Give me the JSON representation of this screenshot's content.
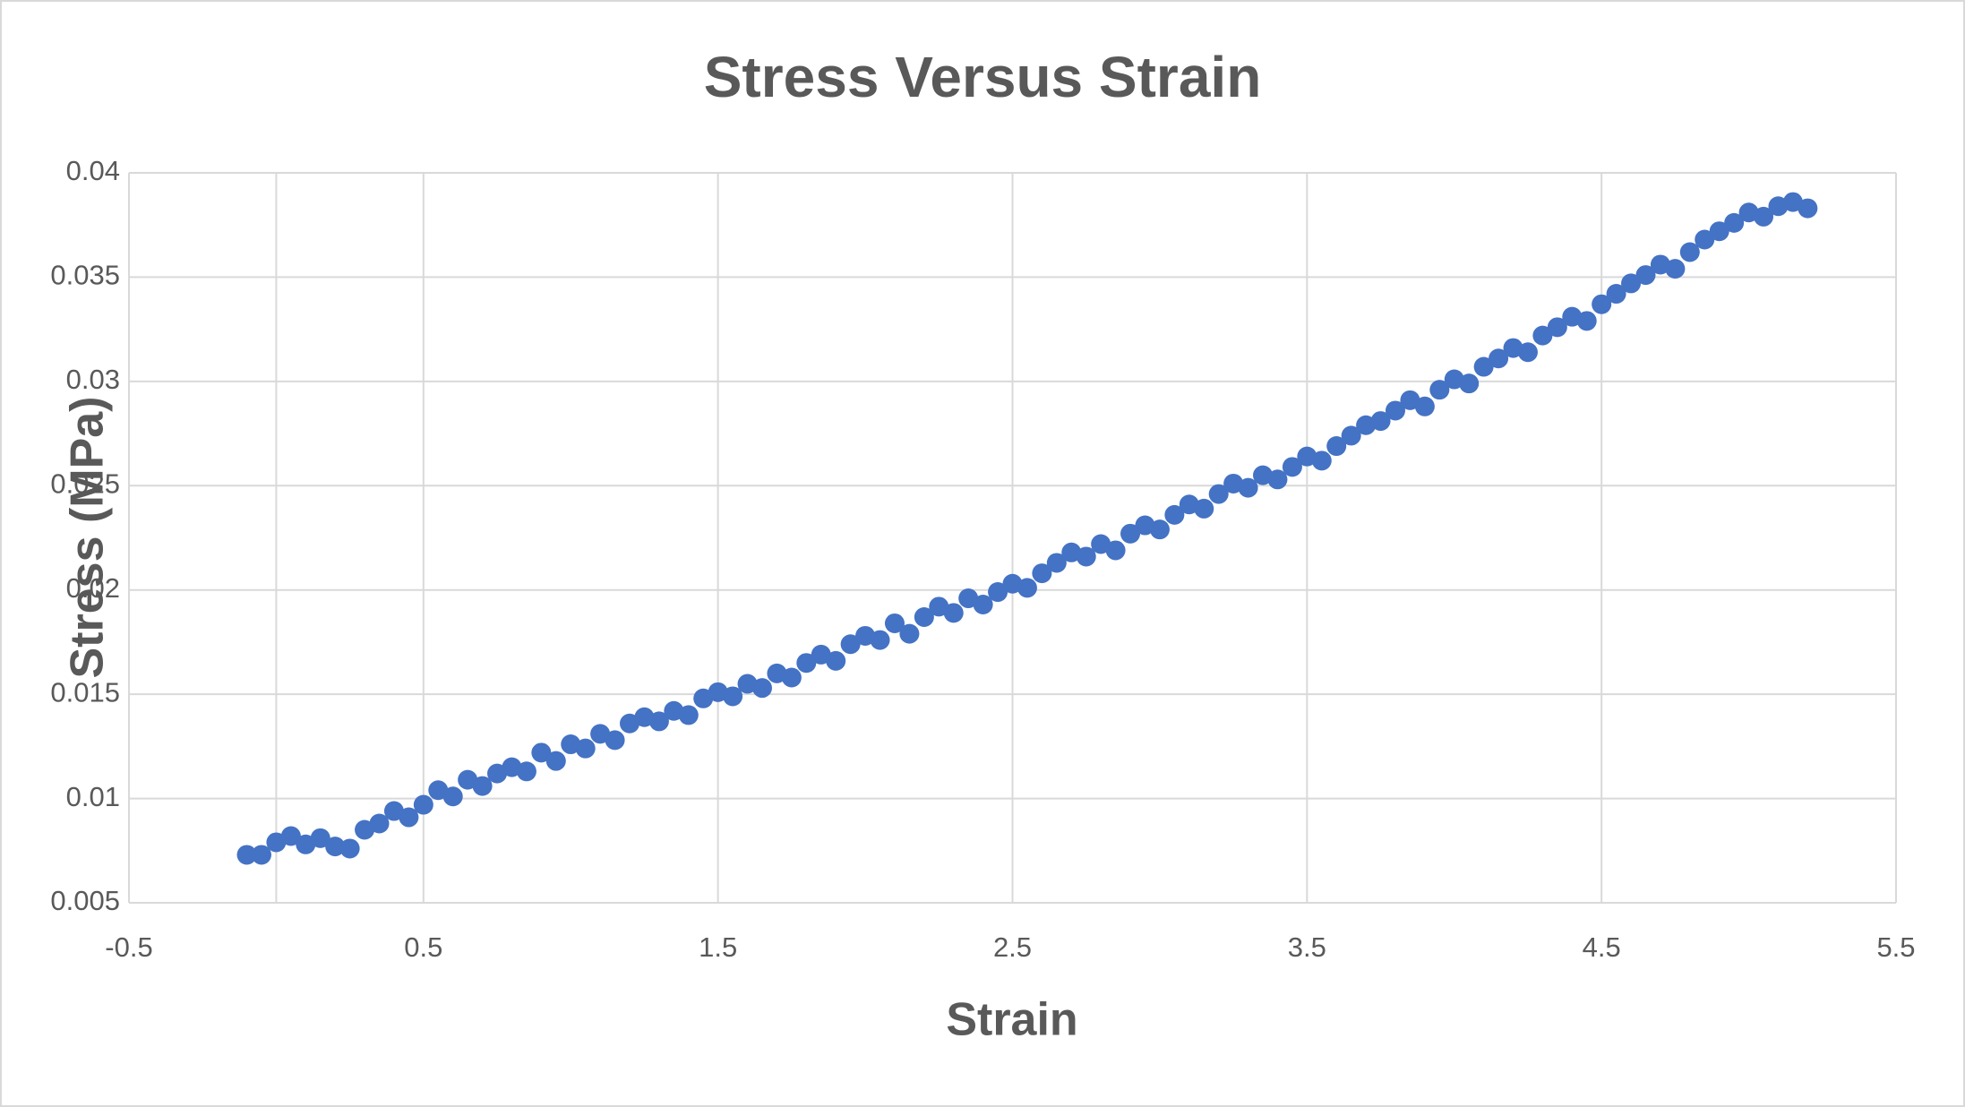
{
  "chart_data": {
    "type": "scatter",
    "title": "Stress Versus Strain",
    "x_label": "Strain",
    "y_label": "Stress (MPa)",
    "color": "#4472c4",
    "grid": true,
    "xlim": [
      -0.5,
      5.5
    ],
    "xticks": [
      -0.5,
      0.5,
      1.5,
      2.5,
      3.5,
      4.5,
      5.5
    ],
    "ylim": [
      0.005,
      0.04
    ],
    "yticks": [
      0.005,
      0.01,
      0.015,
      0.02,
      0.025,
      0.03,
      0.035,
      0.04
    ],
    "x": [
      -0.1,
      -0.05,
      0,
      0.05,
      0.1,
      0.15,
      0.2,
      0.25,
      0.3,
      0.35,
      0.4,
      0.45,
      0.5,
      0.55,
      0.6,
      0.65,
      0.7,
      0.75,
      0.8,
      0.85,
      0.9,
      0.95,
      1.0,
      1.05,
      1.1,
      1.15,
      1.2,
      1.25,
      1.3,
      1.35,
      1.4,
      1.45,
      1.5,
      1.55,
      1.6,
      1.65,
      1.7,
      1.75,
      1.8,
      1.85,
      1.9,
      1.95,
      2.0,
      2.05,
      2.1,
      2.15,
      2.2,
      2.25,
      2.3,
      2.35,
      2.4,
      2.45,
      2.5,
      2.55,
      2.6,
      2.65,
      2.7,
      2.75,
      2.8,
      2.85,
      2.9,
      2.95,
      3.0,
      3.05,
      3.1,
      3.15,
      3.2,
      3.25,
      3.3,
      3.35,
      3.4,
      3.45,
      3.5,
      3.55,
      3.6,
      3.65,
      3.7,
      3.75,
      3.8,
      3.85,
      3.9,
      3.95,
      4.0,
      4.05,
      4.1,
      4.15,
      4.2,
      4.25,
      4.3,
      4.35,
      4.4,
      4.45,
      4.5,
      4.55,
      4.6,
      4.65,
      4.7,
      4.75,
      4.8,
      4.85,
      4.9,
      4.95,
      5.0,
      5.05,
      5.1,
      5.15,
      5.2
    ],
    "values": [
      0.0073,
      0.0073,
      0.0079,
      0.0082,
      0.0078,
      0.0081,
      0.0077,
      0.0076,
      0.0085,
      0.0088,
      0.0094,
      0.0091,
      0.0097,
      0.0104,
      0.0101,
      0.0109,
      0.0106,
      0.0112,
      0.0115,
      0.0113,
      0.0122,
      0.0118,
      0.0126,
      0.0124,
      0.0131,
      0.0128,
      0.0136,
      0.0139,
      0.0137,
      0.0142,
      0.014,
      0.0148,
      0.0151,
      0.0149,
      0.0155,
      0.0153,
      0.016,
      0.0158,
      0.0165,
      0.0169,
      0.0166,
      0.0174,
      0.0178,
      0.0176,
      0.0184,
      0.0179,
      0.0187,
      0.0192,
      0.0189,
      0.0196,
      0.0193,
      0.0199,
      0.0203,
      0.0201,
      0.0208,
      0.0213,
      0.0218,
      0.0216,
      0.0222,
      0.0219,
      0.0227,
      0.0231,
      0.0229,
      0.0236,
      0.0241,
      0.0239,
      0.0246,
      0.0251,
      0.0249,
      0.0255,
      0.0253,
      0.0259,
      0.0264,
      0.0262,
      0.0269,
      0.0274,
      0.0279,
      0.0281,
      0.0286,
      0.0291,
      0.0288,
      0.0296,
      0.0301,
      0.0299,
      0.0307,
      0.0311,
      0.0316,
      0.0314,
      0.0322,
      0.0326,
      0.0331,
      0.0329,
      0.0337,
      0.0342,
      0.0347,
      0.0351,
      0.0356,
      0.0354,
      0.0362,
      0.0368,
      0.0372,
      0.0376,
      0.0381,
      0.0379,
      0.0384,
      0.0386,
      0.0383
    ]
  }
}
